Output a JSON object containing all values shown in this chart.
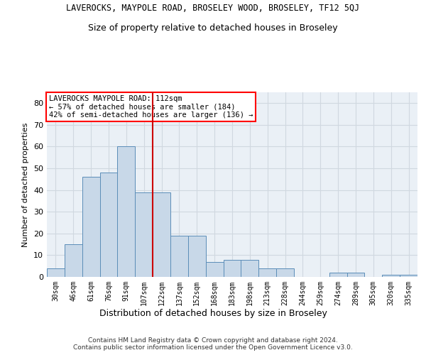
{
  "title": "LAVEROCKS, MAYPOLE ROAD, BROSELEY WOOD, BROSELEY, TF12 5QJ",
  "subtitle": "Size of property relative to detached houses in Broseley",
  "xlabel": "Distribution of detached houses by size in Broseley",
  "ylabel": "Number of detached properties",
  "footer_line1": "Contains HM Land Registry data © Crown copyright and database right 2024.",
  "footer_line2": "Contains public sector information licensed under the Open Government Licence v3.0.",
  "annotation_line1": "LAVEROCKS MAYPOLE ROAD: 112sqm",
  "annotation_line2": "← 57% of detached houses are smaller (184)",
  "annotation_line3": "42% of semi-detached houses are larger (136) →",
  "bar_color": "#c8d8e8",
  "bar_edge_color": "#5b8db8",
  "redline_color": "#cc0000",
  "grid_color": "#d0d8e0",
  "bg_color": "#eaf0f6",
  "categories": [
    "30sqm",
    "46sqm",
    "61sqm",
    "76sqm",
    "91sqm",
    "107sqm",
    "122sqm",
    "137sqm",
    "152sqm",
    "168sqm",
    "183sqm",
    "198sqm",
    "213sqm",
    "228sqm",
    "244sqm",
    "259sqm",
    "274sqm",
    "289sqm",
    "305sqm",
    "320sqm",
    "335sqm"
  ],
  "values": [
    4,
    15,
    46,
    48,
    60,
    39,
    39,
    19,
    19,
    7,
    8,
    8,
    4,
    4,
    0,
    0,
    2,
    2,
    0,
    1,
    1
  ],
  "redline_index": 5,
  "ylim": [
    0,
    85
  ],
  "yticks": [
    0,
    10,
    20,
    30,
    40,
    50,
    60,
    70,
    80
  ]
}
